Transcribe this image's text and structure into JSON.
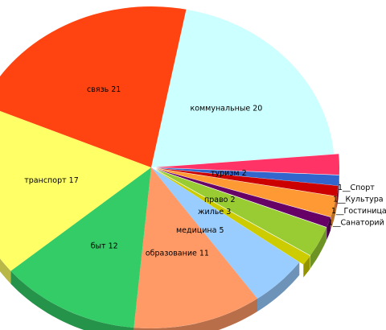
{
  "chart_data": {
    "type": "pie",
    "style": "3d-exploded",
    "title": "",
    "categories": [
      "коммунальные",
      "туризм",
      "Спорт",
      "Культура",
      "право",
      "Гостиница",
      "жилье",
      "Санаторий",
      "медицина",
      "образование",
      "быт",
      "транспорт",
      "связь"
    ],
    "values": [
      20,
      2,
      1,
      1,
      2,
      1,
      3,
      1,
      5,
      11,
      12,
      17,
      21
    ],
    "colors": [
      "#CCFFFF",
      "#FF3366",
      "#3366CC",
      "#CC0000",
      "#FF9933",
      "#660066",
      "#99CC33",
      "#CCCC00",
      "#99CCFF",
      "#FF9966",
      "#33CC66",
      "#FFFF66",
      "#FF4411"
    ],
    "labels": [
      {
        "cat": "коммунальные",
        "text": "коммунальные 20"
      },
      {
        "cat": "туризм",
        "text": "туризм 2"
      },
      {
        "cat": "Спорт",
        "text": "1__Спорт"
      },
      {
        "cat": "Культура",
        "text": "1__Культура"
      },
      {
        "cat": "право",
        "text": "право 2"
      },
      {
        "cat": "Гостиница",
        "text": "1__Гостиница"
      },
      {
        "cat": "жилье",
        "text": "жилье 3"
      },
      {
        "cat": "Санаторий",
        "text": "1__Санаторий"
      },
      {
        "cat": "медицина",
        "text": "медицина 5"
      },
      {
        "cat": "образование",
        "text": "образование 11"
      },
      {
        "cat": "быт",
        "text": "быт 12"
      },
      {
        "cat": "транспорт",
        "text": "транспорт 17"
      },
      {
        "cat": "связь",
        "text": "связь 21"
      }
    ],
    "legend": "none"
  }
}
